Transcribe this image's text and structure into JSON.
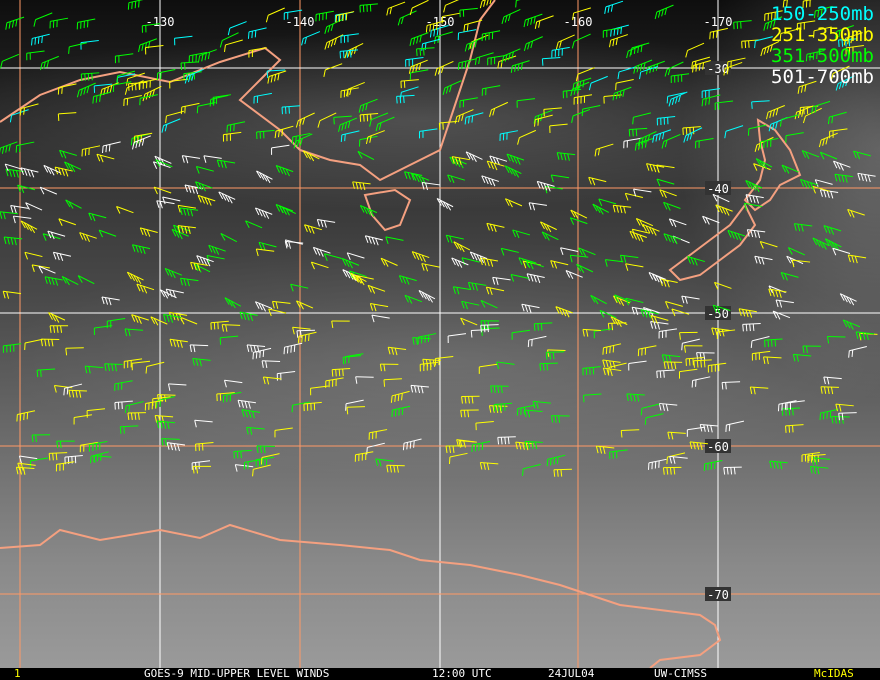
{
  "map": {
    "longitude_labels": [
      "-130",
      "-140",
      "-150",
      "-160",
      "-170"
    ],
    "latitude_labels": [
      "-30",
      "-40",
      "-50",
      "-60",
      "-70"
    ],
    "grid_colors": {
      "white": "#ffffff",
      "orange": "#ff9966"
    },
    "coastline_color": "#f4a080"
  },
  "legend": [
    {
      "label": "150-250mb",
      "color": "#00ffff"
    },
    {
      "label": "251-350mb",
      "color": "#ffff00"
    },
    {
      "label": "351-500mb",
      "color": "#00ff00"
    },
    {
      "label": "501-700mb",
      "color": "#ffffff"
    }
  ],
  "footer": {
    "frame": "1",
    "satellite_product": "GOES-9 MID-UPPER LEVEL WINDS",
    "time": "12:00 UTC",
    "date": "24JUL04",
    "source": "UW-CIMSS",
    "software": "McIDAS"
  }
}
